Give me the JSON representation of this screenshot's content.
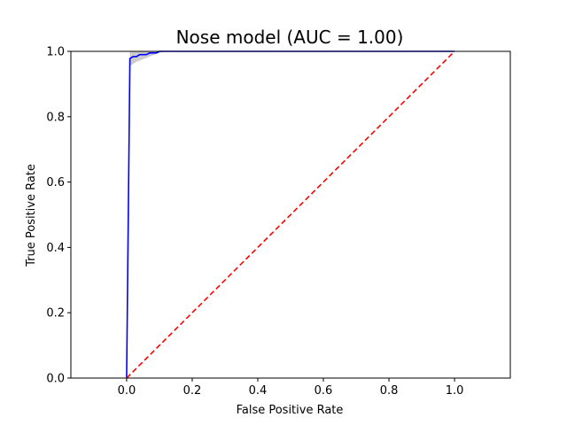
{
  "chart_data": {
    "type": "line",
    "title": "Nose model (AUC = 1.00)",
    "xlabel": "False Positive Rate",
    "ylabel": "True Positive Rate",
    "xlim": [
      -0.17,
      1.17
    ],
    "ylim": [
      0.0,
      1.0
    ],
    "xticks": [
      0.0,
      0.2,
      0.4,
      0.6,
      0.8,
      1.0
    ],
    "yticks": [
      0.0,
      0.2,
      0.4,
      0.6,
      0.8,
      1.0
    ],
    "xtick_labels": [
      "0.0",
      "0.2",
      "0.4",
      "0.6",
      "0.8",
      "1.0"
    ],
    "ytick_labels": [
      "0.0",
      "0.2",
      "0.4",
      "0.6",
      "0.8",
      "1.0"
    ],
    "grid": false,
    "series": [
      {
        "style": "solid",
        "color": "#0000ff",
        "x": [
          0.0,
          0.01,
          0.01,
          0.02,
          0.03,
          0.04,
          0.05,
          0.06,
          0.07,
          0.08,
          0.09,
          0.1,
          0.11,
          0.12,
          1.0
        ],
        "y": [
          0.0,
          0.978,
          0.978,
          0.984,
          0.984,
          0.99,
          0.99,
          0.99,
          0.995,
          0.995,
          0.995,
          1.0,
          1.0,
          1.0,
          1.0
        ]
      },
      {
        "style": "dashed",
        "color": "#ff0000",
        "x": [
          0.0,
          1.0
        ],
        "y": [
          0.0,
          1.0
        ]
      }
    ],
    "confidence_band": {
      "color": "#999999",
      "x": [
        0.01,
        0.02,
        0.03,
        0.04,
        0.05,
        0.06,
        0.07,
        0.08,
        0.09,
        0.1,
        0.11
      ],
      "lower": [
        0.955,
        0.962,
        0.968,
        0.972,
        0.976,
        0.98,
        0.984,
        0.988,
        0.992,
        0.995,
        0.998
      ],
      "upper": [
        1.0,
        1.0,
        1.0,
        1.0,
        1.0,
        1.0,
        1.0,
        1.0,
        1.0,
        1.0,
        1.0
      ]
    }
  }
}
